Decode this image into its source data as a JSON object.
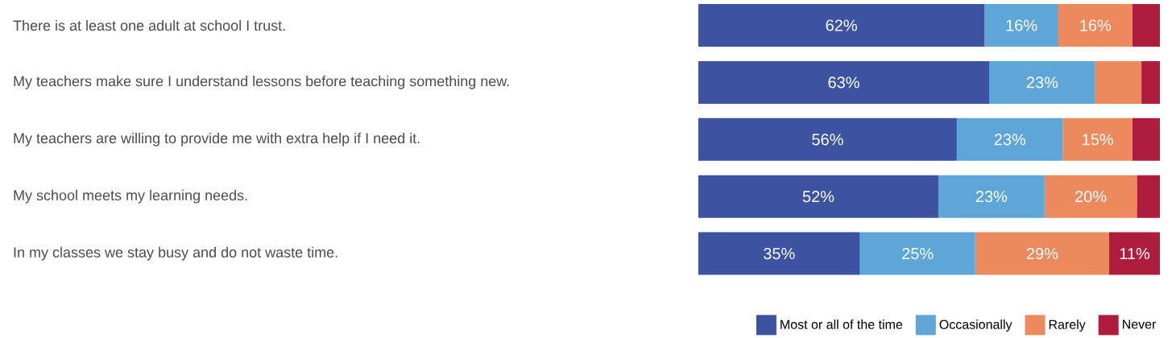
{
  "chart_data": {
    "type": "bar",
    "orientation": "horizontal",
    "stacked": true,
    "categories": [
      "There is at least one adult at school I trust.",
      "My teachers make sure I understand lessons before teaching something new.",
      "My teachers are willing to provide me with extra help if I need it.",
      "My school meets my learning needs.",
      "In my classes we stay busy and do not waste time."
    ],
    "series": [
      {
        "name": "Most or all of the time",
        "color": "#3d52a1",
        "values": [
          62,
          63,
          56,
          52,
          35
        ],
        "value_labels": [
          "62%",
          "63%",
          "56%",
          "52%",
          "35%"
        ]
      },
      {
        "name": "Occasionally",
        "color": "#5ea5d8",
        "values": [
          16,
          23,
          23,
          23,
          25
        ],
        "value_labels": [
          "16%",
          "23%",
          "23%",
          "23%",
          "25%"
        ]
      },
      {
        "name": "Rarely",
        "color": "#ec8a5e",
        "values": [
          16,
          10,
          15,
          20,
          29
        ],
        "value_labels": [
          "16%",
          null,
          "15%",
          "20%",
          "29%"
        ]
      },
      {
        "name": "Never",
        "color": "#ae1d3d",
        "values": [
          6,
          4,
          6,
          5,
          11
        ],
        "value_labels": [
          null,
          null,
          null,
          null,
          "11%"
        ]
      }
    ],
    "xlim": [
      0,
      100
    ],
    "tick_labels": "y",
    "legend": "bottom right"
  }
}
